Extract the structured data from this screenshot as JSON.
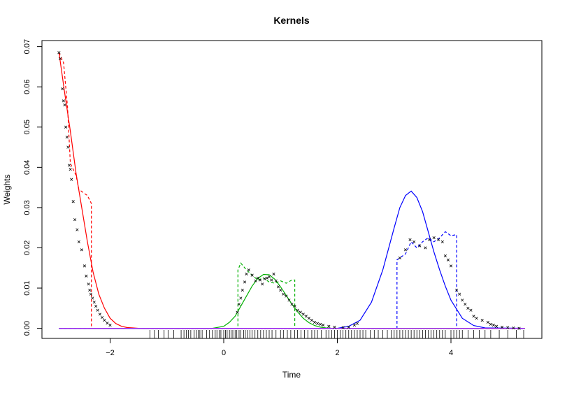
{
  "chart_data": {
    "type": "line",
    "title": "Kernels",
    "xlabel": "Time",
    "ylabel": "Weights",
    "xlim": [
      -3.2,
      5.6
    ],
    "ylim": [
      -0.0025,
      0.0715
    ],
    "x_ticks": [
      -2,
      0,
      2,
      4
    ],
    "x_tick_labels": [
      "−2",
      "0",
      "2",
      "4"
    ],
    "y_ticks": [
      0,
      0.01,
      0.02,
      0.03,
      0.04,
      0.05,
      0.06,
      0.07
    ],
    "y_tick_labels": [
      "0.00",
      "0.01",
      "0.02",
      "0.03",
      "0.04",
      "0.05",
      "0.06",
      "0.07"
    ],
    "grid": false,
    "legend": "none",
    "series": [
      {
        "color": "#ff0000",
        "style": "solid",
        "x": [
          -2.9,
          -2.8,
          -2.7,
          -2.6,
          -2.5,
          -2.4,
          -2.3,
          -2.2,
          -2.1,
          -2.0,
          -1.9,
          -1.8,
          -1.7,
          -1.6,
          -1.5,
          -1.4,
          5.3
        ],
        "y": [
          0.0685,
          0.0585,
          0.049,
          0.0385,
          0.03,
          0.0215,
          0.014,
          0.0085,
          0.005,
          0.0025,
          0.0012,
          0.0005,
          0.0002,
          0.0001,
          0.0,
          0.0,
          0.0
        ]
      },
      {
        "color": "#ff0000",
        "style": "dashed",
        "x": [
          -2.9,
          -2.82,
          -2.75,
          -2.7,
          -2.6,
          -2.55,
          -2.45,
          -2.4,
          -2.33,
          -2.33,
          5.3
        ],
        "y": [
          0.0685,
          0.066,
          0.055,
          0.041,
          0.038,
          0.0345,
          0.0335,
          0.033,
          0.031,
          0.0,
          0.0
        ]
      },
      {
        "color": "#00b000",
        "style": "solid",
        "x": [
          -2.9,
          -0.2,
          0.0,
          0.1,
          0.2,
          0.3,
          0.4,
          0.5,
          0.6,
          0.7,
          0.8,
          0.9,
          1.0,
          1.1,
          1.2,
          1.3,
          1.4,
          1.5,
          1.6,
          1.7,
          1.8,
          1.9,
          2.0,
          5.3
        ],
        "y": [
          0.0,
          0.0,
          0.0005,
          0.0015,
          0.003,
          0.0055,
          0.008,
          0.0105,
          0.0124,
          0.0134,
          0.0133,
          0.0122,
          0.0103,
          0.0082,
          0.006,
          0.0041,
          0.0025,
          0.0014,
          0.0007,
          0.0003,
          0.0001,
          0.0,
          0.0,
          0.0
        ]
      },
      {
        "color": "#00b000",
        "style": "dashed",
        "x": [
          -2.9,
          0.25,
          0.25,
          0.3,
          0.4,
          0.5,
          0.6,
          0.7,
          0.8,
          0.9,
          1.0,
          1.1,
          1.2,
          1.25,
          1.25,
          5.3
        ],
        "y": [
          0.0,
          0.0,
          0.0145,
          0.0162,
          0.0145,
          0.0132,
          0.012,
          0.0125,
          0.0115,
          0.0112,
          0.0118,
          0.0112,
          0.012,
          0.012,
          0.0,
          0.0
        ]
      },
      {
        "color": "#0000ff",
        "style": "solid",
        "x": [
          -2.9,
          2.0,
          2.2,
          2.4,
          2.6,
          2.8,
          3.0,
          3.1,
          3.2,
          3.3,
          3.4,
          3.5,
          3.6,
          3.7,
          3.8,
          3.9,
          4.0,
          4.2,
          4.4,
          4.6,
          5.3
        ],
        "y": [
          0.0,
          0.0,
          0.0005,
          0.002,
          0.0065,
          0.0145,
          0.025,
          0.03,
          0.033,
          0.0341,
          0.0325,
          0.029,
          0.024,
          0.019,
          0.0145,
          0.0105,
          0.007,
          0.0025,
          0.0007,
          0.0001,
          0.0
        ]
      },
      {
        "color": "#0000ff",
        "style": "dashed",
        "x": [
          -2.9,
          3.05,
          3.05,
          3.2,
          3.3,
          3.4,
          3.5,
          3.6,
          3.7,
          3.8,
          3.9,
          4.0,
          4.1,
          4.1,
          5.3
        ],
        "y": [
          0.0,
          0.0,
          0.017,
          0.0185,
          0.0215,
          0.02,
          0.0215,
          0.0225,
          0.0215,
          0.0225,
          0.024,
          0.023,
          0.0233,
          0.0,
          0.0
        ]
      },
      {
        "color": "#a020f0",
        "style": "solid",
        "x": [
          -2.9,
          5.3
        ],
        "y": [
          0.0,
          0.0
        ]
      }
    ],
    "points": {
      "marker": "x",
      "color": "#000000",
      "x": [
        -2.9,
        -2.88,
        -2.84,
        -2.82,
        -2.8,
        -2.78,
        -2.76,
        -2.74,
        -2.72,
        -2.7,
        -2.68,
        -2.65,
        -2.62,
        -2.58,
        -2.55,
        -2.5,
        -2.45,
        -2.42,
        -2.38,
        -2.36,
        -2.34,
        -2.31,
        -2.28,
        -2.25,
        -2.22,
        -2.18,
        -2.14,
        -2.1,
        -2.05,
        -2.0,
        0.24,
        0.27,
        0.3,
        0.33,
        0.37,
        0.4,
        0.44,
        0.5,
        0.56,
        0.6,
        0.64,
        0.68,
        0.72,
        0.76,
        0.8,
        0.84,
        0.88,
        0.92,
        0.96,
        1.0,
        1.05,
        1.1,
        1.15,
        1.2,
        1.25,
        1.3,
        1.35,
        1.4,
        1.45,
        1.5,
        1.55,
        1.6,
        1.65,
        1.7,
        1.75,
        1.85,
        1.95,
        2.1,
        2.2,
        2.3,
        2.35,
        3.1,
        3.2,
        3.28,
        3.35,
        3.45,
        3.55,
        3.62,
        3.7,
        3.78,
        3.85,
        3.9,
        3.95,
        4.0,
        4.1,
        4.15,
        4.2,
        4.25,
        4.3,
        4.35,
        4.4,
        4.45,
        4.55,
        4.65,
        4.7,
        4.75,
        4.8,
        4.9,
        5.0,
        5.1,
        5.2
      ],
      "y": [
        0.0685,
        0.067,
        0.0595,
        0.0565,
        0.0555,
        0.05,
        0.0475,
        0.045,
        0.0405,
        0.0395,
        0.037,
        0.0315,
        0.027,
        0.0245,
        0.0215,
        0.0195,
        0.0155,
        0.013,
        0.011,
        0.0095,
        0.0085,
        0.0075,
        0.0065,
        0.0055,
        0.0045,
        0.0035,
        0.0027,
        0.002,
        0.0013,
        0.0008,
        0.004,
        0.006,
        0.0075,
        0.0095,
        0.0115,
        0.0135,
        0.0145,
        0.0132,
        0.0118,
        0.0125,
        0.012,
        0.011,
        0.0123,
        0.0125,
        0.0128,
        0.012,
        0.0135,
        0.0118,
        0.0103,
        0.0095,
        0.0085,
        0.008,
        0.007,
        0.006,
        0.0055,
        0.0045,
        0.004,
        0.0035,
        0.003,
        0.0025,
        0.002,
        0.0015,
        0.0012,
        0.001,
        0.0008,
        0.0005,
        0.0003,
        0.0002,
        0.0003,
        0.0008,
        0.0012,
        0.0175,
        0.0195,
        0.022,
        0.0215,
        0.0205,
        0.02,
        0.022,
        0.0225,
        0.022,
        0.0215,
        0.018,
        0.017,
        0.0155,
        0.0095,
        0.0085,
        0.007,
        0.006,
        0.005,
        0.0045,
        0.003,
        0.0025,
        0.002,
        0.0015,
        0.001,
        0.0008,
        0.0005,
        0.0003,
        0.0002,
        0.0001,
        0.0
      ]
    },
    "rug": [
      -1.3,
      -1.22,
      -1.15,
      -1.05,
      -0.98,
      -0.88,
      -0.75,
      -0.7,
      -0.66,
      -0.62,
      -0.58,
      -0.52,
      -0.48,
      -0.45,
      -0.42,
      -0.38,
      -0.3,
      -0.25,
      -0.2,
      -0.15,
      -0.12,
      -0.08,
      -0.05,
      0.0,
      0.03,
      0.06,
      0.1,
      0.13,
      0.16,
      0.2,
      0.23,
      0.27,
      0.3,
      0.35,
      0.38,
      0.42,
      0.46,
      0.5,
      0.55,
      0.6,
      0.65,
      0.7,
      0.75,
      0.8,
      0.85,
      0.92,
      1.0,
      1.05,
      1.12,
      1.18,
      1.25,
      1.3,
      1.36,
      1.42,
      1.48,
      1.55,
      1.6,
      1.65,
      1.72,
      1.8,
      1.85,
      1.9,
      1.95,
      2.0,
      2.05,
      2.1,
      2.15,
      2.2,
      2.25,
      2.3,
      2.35,
      2.4,
      2.45,
      2.5,
      2.58,
      2.65,
      2.72,
      2.8,
      2.88,
      2.95,
      3.0,
      3.05,
      3.1,
      3.15,
      3.2,
      3.25,
      3.3,
      3.35,
      3.4,
      3.45,
      3.5,
      3.55,
      3.6,
      3.65,
      3.7,
      3.75,
      3.8,
      3.85,
      3.9,
      4.0,
      4.05,
      4.1,
      4.15,
      4.2,
      4.3,
      4.4,
      4.5,
      4.6,
      4.7,
      4.85,
      5.0,
      5.15,
      5.28
    ]
  }
}
